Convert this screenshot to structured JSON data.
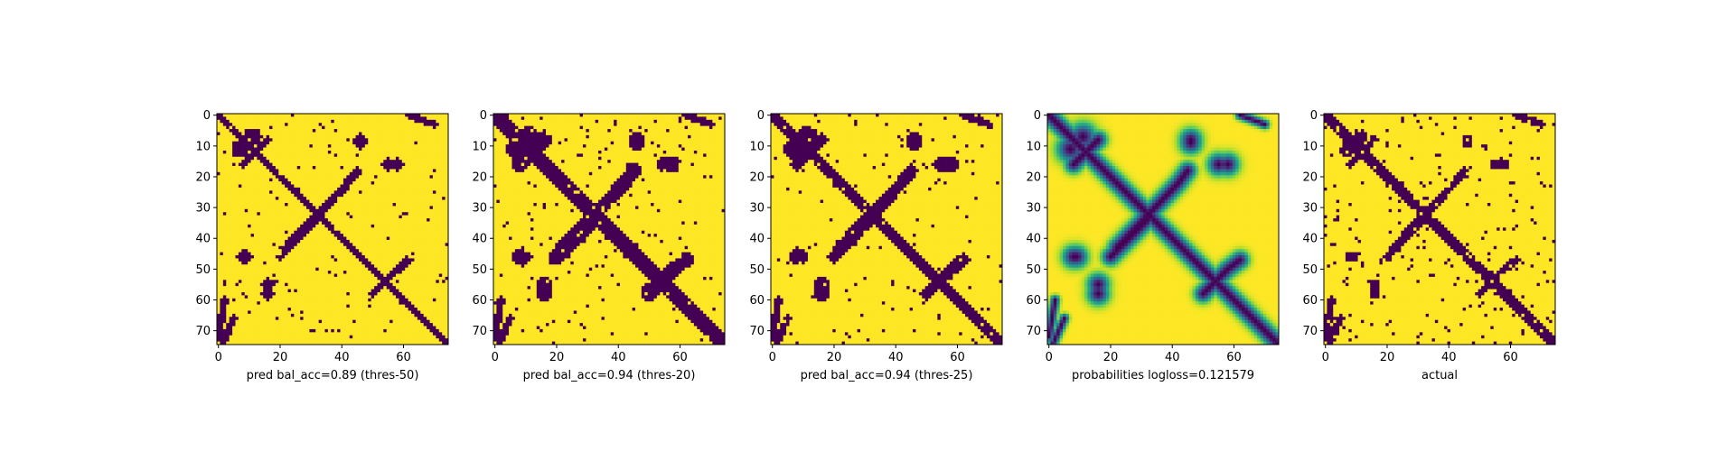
{
  "colors": {
    "background": "#440154",
    "foreground": "#fde725",
    "colormap": "viridis"
  },
  "chart_data": [
    {
      "type": "heatmap",
      "panel": "pred-thres-50",
      "xlabel": "pred bal_acc=0.89 (thres-50)",
      "xlim": [
        0,
        75
      ],
      "ylim": [
        75,
        0
      ],
      "xticks": [
        "0",
        "20",
        "40",
        "60"
      ],
      "yticks": [
        "0",
        "10",
        "20",
        "30",
        "40",
        "50",
        "60",
        "70"
      ],
      "binary": true,
      "features": {
        "diagonal_band": 1.2,
        "cross_band": 1.2,
        "blobs": [
          [
            7,
            11,
            2.5
          ],
          [
            46,
            8,
            1.8
          ],
          [
            55,
            16,
            1.8
          ],
          [
            9,
            46,
            1.8
          ],
          [
            16,
            58,
            1.8
          ]
        ],
        "noise": 0.02
      }
    },
    {
      "type": "heatmap",
      "panel": "pred-thres-20",
      "xlabel": "pred bal_acc=0.94 (thres-20)",
      "xlim": [
        0,
        75
      ],
      "ylim": [
        75,
        0
      ],
      "xticks": [
        "0",
        "20",
        "40",
        "60"
      ],
      "yticks": [
        "0",
        "10",
        "20",
        "30",
        "40",
        "50",
        "60",
        "70"
      ],
      "binary": true,
      "features": {
        "diagonal_band": 1.9,
        "cross_band": 1.9,
        "blobs": [
          [
            7,
            11,
            3.0
          ],
          [
            46,
            8,
            2.4
          ],
          [
            55,
            16,
            2.4
          ],
          [
            9,
            46,
            2.4
          ],
          [
            16,
            58,
            2.4
          ]
        ],
        "noise": 0.03
      }
    },
    {
      "type": "heatmap",
      "panel": "pred-thres-25",
      "xlabel": "pred bal_acc=0.94 (thres-25)",
      "xlim": [
        0,
        75
      ],
      "ylim": [
        75,
        0
      ],
      "xticks": [
        "0",
        "20",
        "40",
        "60"
      ],
      "yticks": [
        "0",
        "10",
        "20",
        "30",
        "40",
        "50",
        "60",
        "70"
      ],
      "binary": true,
      "features": {
        "diagonal_band": 1.7,
        "cross_band": 1.7,
        "blobs": [
          [
            7,
            11,
            2.8
          ],
          [
            46,
            8,
            2.2
          ],
          [
            55,
            16,
            2.2
          ],
          [
            9,
            46,
            2.2
          ],
          [
            16,
            58,
            2.2
          ]
        ],
        "noise": 0.025
      }
    },
    {
      "type": "heatmap",
      "panel": "probabilities",
      "xlabel": "probabilities logloss=0.121579",
      "xlim": [
        0,
        75
      ],
      "ylim": [
        75,
        0
      ],
      "xticks": [
        "0",
        "20",
        "40",
        "60"
      ],
      "yticks": [
        "0",
        "10",
        "20",
        "30",
        "40",
        "50",
        "60",
        "70"
      ],
      "binary": false,
      "features": {
        "diagonal_band": 1.9,
        "cross_band": 1.9,
        "blobs": [
          [
            7,
            11,
            3.0
          ],
          [
            46,
            8,
            2.4
          ],
          [
            55,
            16,
            2.4
          ],
          [
            9,
            46,
            2.4
          ],
          [
            16,
            58,
            2.4
          ]
        ],
        "noise": 0.0
      }
    },
    {
      "type": "heatmap",
      "panel": "actual",
      "xlabel": "actual",
      "xlim": [
        0,
        75
      ],
      "ylim": [
        75,
        0
      ],
      "xticks": [
        "0",
        "20",
        "40",
        "60"
      ],
      "yticks": [
        "0",
        "10",
        "20",
        "30",
        "40",
        "50",
        "60",
        "70"
      ],
      "binary": true,
      "features": {
        "diagonal_band": 1.3,
        "cross_band": 1.1,
        "blobs": [
          [
            7,
            11,
            2.0
          ],
          [
            46,
            8,
            1.5
          ],
          [
            55,
            16,
            1.5
          ],
          [
            9,
            46,
            1.5
          ],
          [
            16,
            58,
            1.5
          ]
        ],
        "noise": 0.04
      }
    }
  ]
}
